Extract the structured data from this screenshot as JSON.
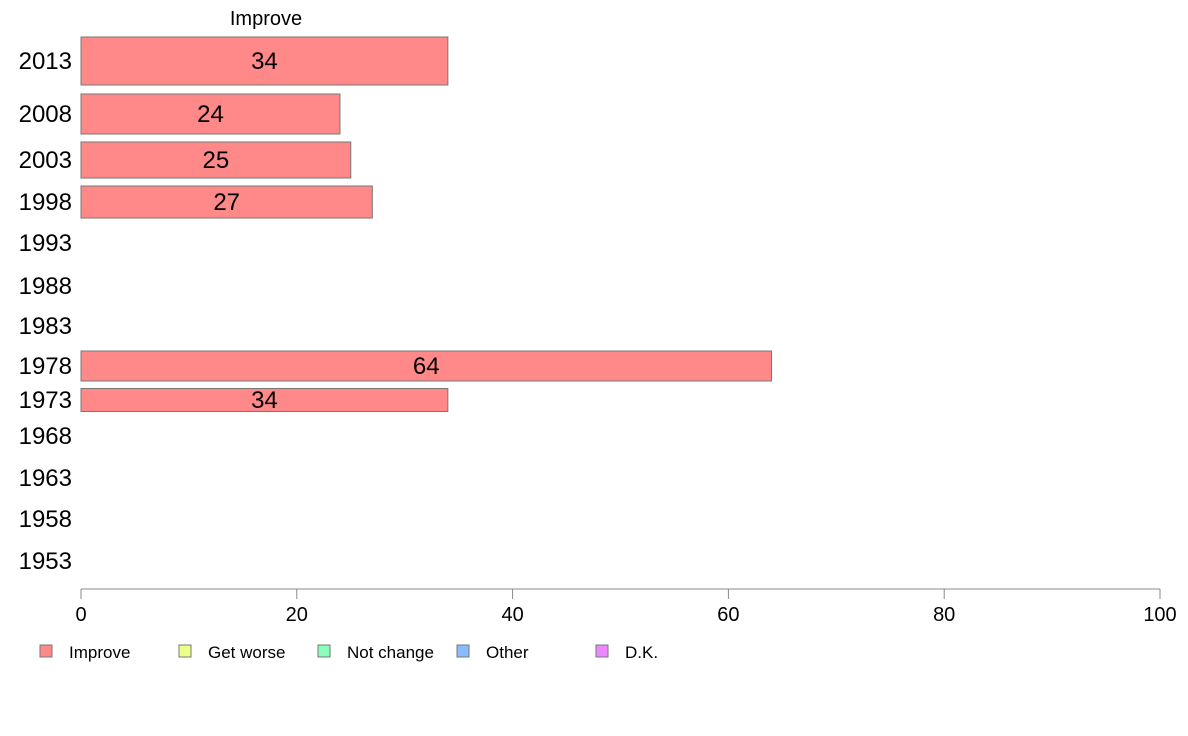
{
  "chart_data": {
    "type": "bar",
    "orientation": "horizontal",
    "title": "Improve",
    "categories": [
      "2013",
      "2008",
      "2003",
      "1998",
      "1993",
      "1988",
      "1983",
      "1978",
      "1973",
      "1968",
      "1963",
      "1958",
      "1953"
    ],
    "series": [
      {
        "name": "Improve",
        "values": [
          34,
          24,
          25,
          27,
          null,
          null,
          null,
          64,
          34,
          null,
          null,
          null,
          null
        ]
      }
    ],
    "xlim": [
      0,
      100
    ],
    "xticks": [
      0,
      20,
      40,
      60,
      80,
      100
    ],
    "xlabel": "",
    "ylabel": "",
    "grid": false,
    "legend_position": "bottom",
    "legend": [
      {
        "label": "Improve",
        "color": "#ff8888"
      },
      {
        "label": "Get worse",
        "color": "#eeff88"
      },
      {
        "label": "Not change",
        "color": "#88ffbb"
      },
      {
        "label": "Other",
        "color": "#88bbff"
      },
      {
        "label": "D.K.",
        "color": "#ee88ff"
      }
    ],
    "bar_color": "#ff8888",
    "bar_stroke": "#777777"
  }
}
